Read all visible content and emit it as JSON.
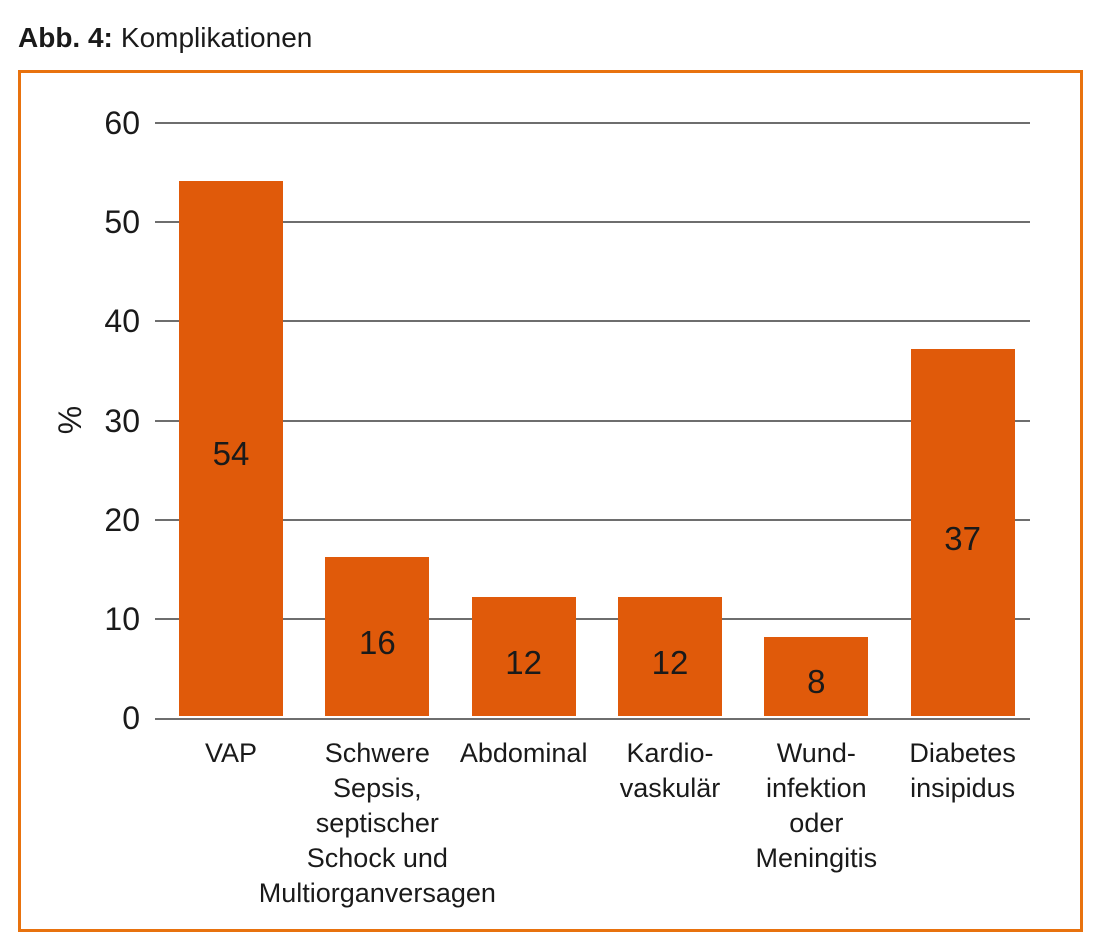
{
  "figure": {
    "label": "Abb. 4:",
    "title": "Komplikationen"
  },
  "chart_data": {
    "type": "bar",
    "title": "Abb. 4: Komplikationen",
    "categories": [
      "VAP",
      "Schwere\nSepsis,\nseptischer\nSchock und\nMultiorganversagen",
      "Abdominal",
      "Kardio-\nvaskulär",
      "Wund-\ninfektion\noder\nMeningitis",
      "Diabetes\ninsipidus"
    ],
    "values": [
      54,
      16,
      12,
      12,
      8,
      37
    ],
    "value_labels": [
      "54",
      "16",
      "12",
      "12",
      "8",
      "37"
    ],
    "xlabel": "",
    "ylabel": "%",
    "ylim": [
      0,
      60
    ],
    "yticks": [
      0,
      10,
      20,
      30,
      40,
      50,
      60
    ],
    "grid": true,
    "legend": false,
    "bar_color": "#e05a0a",
    "frame_color": "#e8720e",
    "gridline_color": "#6e6e6e",
    "text_color": "#1a1a1a"
  }
}
